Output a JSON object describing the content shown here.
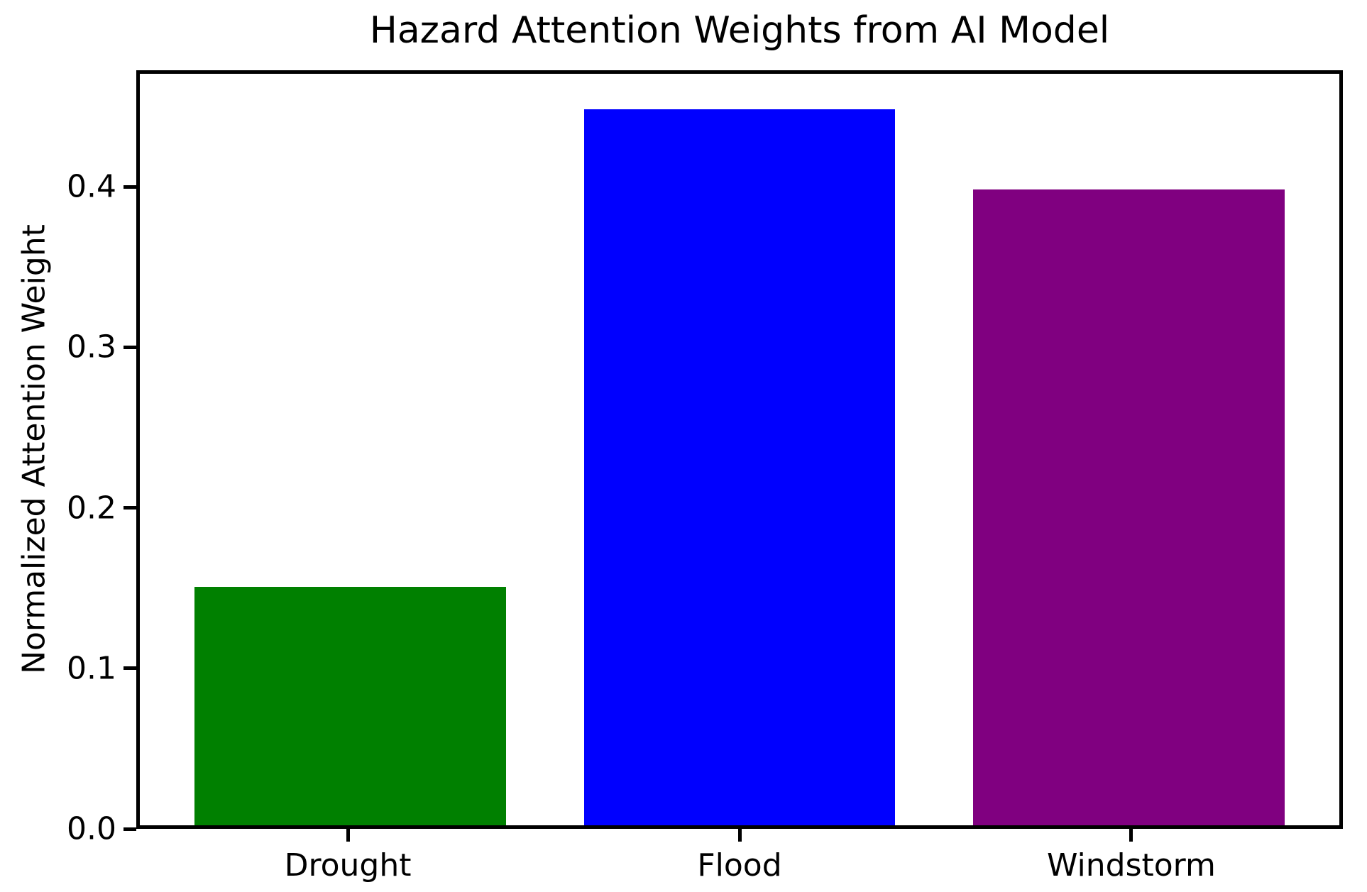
{
  "chart_data": {
    "type": "bar",
    "title": "Hazard Attention Weights from AI Model",
    "xlabel": "",
    "ylabel": "Normalized Attention Weight",
    "categories": [
      "Drought",
      "Flood",
      "Windstorm"
    ],
    "values": [
      0.15,
      0.45,
      0.4
    ],
    "bar_colors": [
      "#008000",
      "#0000ff",
      "#800080"
    ],
    "ylim": [
      0,
      0.4725
    ],
    "yticks": [
      0.0,
      0.1,
      0.2,
      0.3,
      0.4
    ],
    "ytick_labels": [
      "0.0",
      "0.1",
      "0.2",
      "0.3",
      "0.4"
    ],
    "xlim": [
      -0.54,
      2.54
    ],
    "bar_width": 0.8,
    "grid": false,
    "legend_position": "none",
    "axis_color": "#000000",
    "background_color": "#ffffff"
  }
}
